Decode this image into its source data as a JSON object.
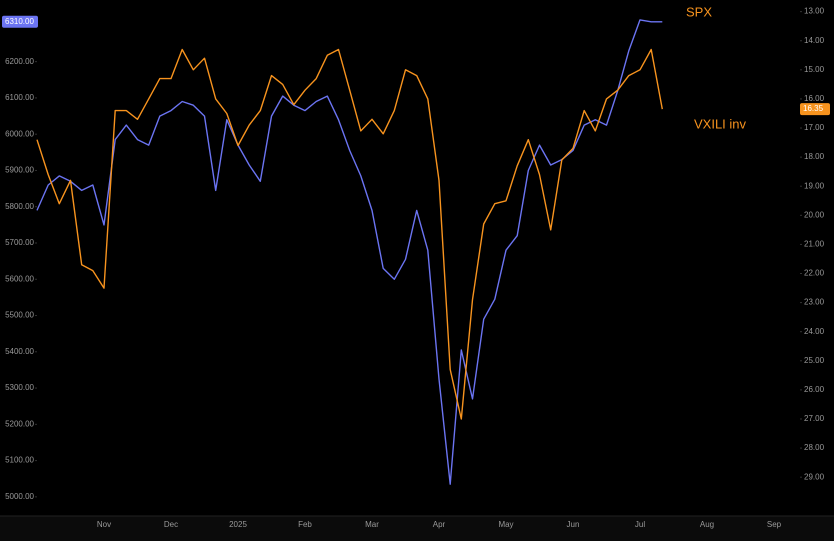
{
  "chart_data": {
    "type": "line",
    "categories": [
      null,
      null,
      null,
      null,
      null,
      null,
      "Nov",
      null,
      null,
      null,
      null,
      null,
      "Dec",
      null,
      null,
      null,
      null,
      null,
      "2025",
      null,
      null,
      null,
      null,
      null,
      "Feb",
      null,
      null,
      null,
      null,
      null,
      "Mar",
      null,
      null,
      null,
      null,
      null,
      "Apr",
      null,
      null,
      null,
      null,
      null,
      "May",
      null,
      null,
      null,
      null,
      null,
      "Jun",
      null,
      null,
      null,
      null,
      null,
      "Jul",
      null,
      null,
      null,
      null,
      null,
      "Aug",
      null,
      null,
      null,
      null,
      null,
      "Sep",
      null,
      null,
      null,
      null,
      null
    ],
    "series": [
      {
        "name": "SPX",
        "color": "#6b74f2",
        "axis": "y",
        "last_value_label": "6310.00",
        "values": [
          5790,
          5860,
          5885,
          5870,
          5845,
          5860,
          5750,
          5985,
          6025,
          5985,
          5970,
          6050,
          6065,
          6090,
          6080,
          6050,
          5845,
          6040,
          5970,
          5915,
          5870,
          6050,
          6105,
          6080,
          6065,
          6090,
          6105,
          6040,
          5955,
          5885,
          5790,
          5630,
          5600,
          5655,
          5790,
          5680,
          5325,
          5035,
          5405,
          5270,
          5490,
          5545,
          5680,
          5720,
          5900,
          5970,
          5915,
          5930,
          5955,
          6025,
          6040,
          6025,
          6120,
          6230,
          6315,
          6310,
          6310,
          null,
          null,
          null,
          null,
          null,
          null,
          null,
          null,
          null,
          null,
          null,
          null,
          null,
          null,
          null
        ]
      },
      {
        "name": "VXILI inv",
        "color": "#f7931e",
        "axis": "y2",
        "last_value_label": "16.35",
        "values": [
          17.4,
          18.6,
          19.6,
          18.8,
          21.7,
          21.9,
          22.5,
          16.4,
          16.4,
          16.7,
          16.0,
          15.3,
          15.3,
          14.3,
          15.0,
          14.6,
          16.0,
          16.5,
          17.6,
          16.9,
          16.4,
          15.2,
          15.5,
          16.2,
          15.7,
          15.3,
          14.5,
          14.3,
          15.7,
          17.1,
          16.7,
          17.2,
          16.4,
          15.0,
          15.2,
          16.0,
          18.8,
          25.3,
          27.0,
          22.9,
          20.3,
          19.6,
          19.5,
          18.3,
          17.4,
          18.6,
          20.5,
          18.1,
          17.7,
          16.4,
          17.1,
          16.0,
          15.7,
          15.2,
          15.0,
          14.3,
          16.35,
          null,
          null,
          null,
          null,
          null,
          null,
          null,
          null,
          null,
          null,
          null,
          null,
          null,
          null,
          null
        ]
      }
    ],
    "ylim": [
      4950,
      6370
    ],
    "yticks": [
      {
        "value": 5000,
        "label": "5000.00"
      },
      {
        "value": 5100,
        "label": "5100.00"
      },
      {
        "value": 5200,
        "label": "5200.00"
      },
      {
        "value": 5300,
        "label": "5300.00"
      },
      {
        "value": 5400,
        "label": "5400.00"
      },
      {
        "value": 5500,
        "label": "5500.00"
      },
      {
        "value": 5600,
        "label": "5600.00"
      },
      {
        "value": 5700,
        "label": "5700.00"
      },
      {
        "value": 5800,
        "label": "5800.00"
      },
      {
        "value": 5900,
        "label": "5900.00"
      },
      {
        "value": 6000,
        "label": "6000.00"
      },
      {
        "value": 6100,
        "label": "6100.00"
      },
      {
        "value": 6200,
        "label": "6200.00"
      }
    ],
    "y2lim": [
      30.3,
      12.6
    ],
    "y2ticks": [
      {
        "value": 13,
        "label": "13.00"
      },
      {
        "value": 14,
        "label": "14.00"
      },
      {
        "value": 15,
        "label": "15.00"
      },
      {
        "value": 16,
        "label": "16.00"
      },
      {
        "value": 17,
        "label": "17.00"
      },
      {
        "value": 18,
        "label": "18.00"
      },
      {
        "value": 19,
        "label": "19.00"
      },
      {
        "value": 20,
        "label": "20.00"
      },
      {
        "value": 21,
        "label": "21.00"
      },
      {
        "value": 22,
        "label": "22.00"
      },
      {
        "value": 23,
        "label": "23.00"
      },
      {
        "value": 24,
        "label": "24.00"
      },
      {
        "value": 25,
        "label": "25.00"
      },
      {
        "value": 26,
        "label": "26.00"
      },
      {
        "value": 27,
        "label": "27.00"
      },
      {
        "value": 28,
        "label": "28.00"
      },
      {
        "value": 29,
        "label": "29.00"
      }
    ],
    "grid": false
  }
}
